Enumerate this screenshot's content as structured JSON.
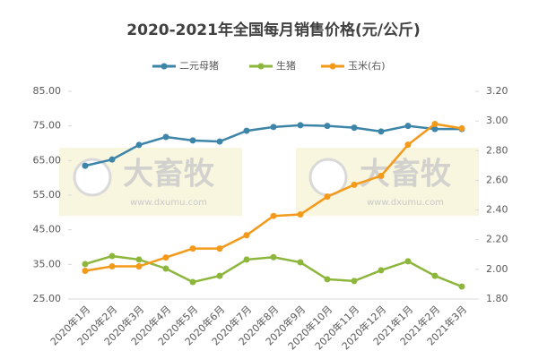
{
  "chart_data": {
    "type": "line",
    "title": "2020-2021年全国每月销售价格(元/公斤)",
    "watermark": {
      "text": "大畜牧",
      "url": "www.dxumu.com"
    },
    "categories": [
      "2020年1月",
      "2020年2月",
      "2020年3月",
      "2020年4月",
      "2020年5月",
      "2020年6月",
      "2020年7月",
      "2020年8月",
      "2020年9月",
      "2020年10月",
      "2020年11月",
      "2020年12月",
      "2021年1月",
      "2021年2月",
      "2021年3月"
    ],
    "series": [
      {
        "name": "二元母猪",
        "color": "#3d85a8",
        "values": [
          63.5,
          65.3,
          69.5,
          71.8,
          70.8,
          70.5,
          73.6,
          74.7,
          75.2,
          75.0,
          74.5,
          73.4,
          75.0,
          74.1,
          74.1
        ]
      },
      {
        "name": "生猪",
        "color": "#8db63c",
        "values": [
          35.1,
          37.4,
          36.4,
          33.8,
          29.9,
          31.7,
          36.4,
          37.1,
          35.6,
          30.7,
          30.2,
          33.3,
          35.9,
          31.7,
          28.6
        ]
      },
      {
        "name": "玉米(右)",
        "color": "#f39a1b",
        "axis": "y2",
        "values": [
          1.99,
          2.02,
          2.02,
          2.08,
          2.14,
          2.14,
          2.23,
          2.36,
          2.37,
          2.49,
          2.57,
          2.63,
          2.84,
          2.98,
          2.95
        ]
      }
    ],
    "ylim": [
      25,
      85
    ],
    "yticks": [
      {
        "value": 25,
        "label": "25.00"
      },
      {
        "value": 35,
        "label": "35.00"
      },
      {
        "value": 45,
        "label": "45.00"
      },
      {
        "value": 55,
        "label": "55.00"
      },
      {
        "value": 65,
        "label": "65.00"
      },
      {
        "value": 75,
        "label": "75.00"
      },
      {
        "value": 85,
        "label": "85.00"
      }
    ],
    "y2lim": [
      1.8,
      3.2
    ],
    "y2ticks": [
      {
        "value": 1.8,
        "label": "1.80"
      },
      {
        "value": 2,
        "label": "2.00"
      },
      {
        "value": 2.2,
        "label": "2.20"
      },
      {
        "value": 2.4,
        "label": "2.40"
      },
      {
        "value": 2.6,
        "label": "2.60"
      },
      {
        "value": 2.8,
        "label": "2.80"
      },
      {
        "value": 3,
        "label": "3.00"
      },
      {
        "value": 3.2,
        "label": "3.20"
      }
    ]
  }
}
